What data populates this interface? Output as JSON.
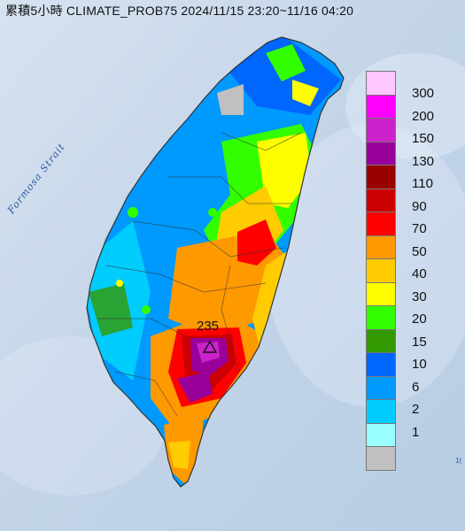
{
  "title": "累積5小時 CLIMATE_PROB75 2024/11/15 23:20~11/16 04:20",
  "map_labels": {
    "strait": "Formosa Strait",
    "peak_value": "235",
    "edge_text": "1("
  },
  "legend": {
    "bands": [
      {
        "label": "300",
        "color": "#fec8fe"
      },
      {
        "label": "200",
        "color": "#fe00fe"
      },
      {
        "label": "150",
        "color": "#cc22cc"
      },
      {
        "label": "130",
        "color": "#990099"
      },
      {
        "label": "110",
        "color": "#990000"
      },
      {
        "label": "90",
        "color": "#cc0000"
      },
      {
        "label": "70",
        "color": "#fe0000"
      },
      {
        "label": "50",
        "color": "#fe9900"
      },
      {
        "label": "40",
        "color": "#fecc00"
      },
      {
        "label": "30",
        "color": "#fefe00"
      },
      {
        "label": "20",
        "color": "#33fe00"
      },
      {
        "label": "15",
        "color": "#339900"
      },
      {
        "label": "10",
        "color": "#0066fe"
      },
      {
        "label": "6",
        "color": "#0099fe"
      },
      {
        "label": "2",
        "color": "#00ccfe"
      },
      {
        "label": "1",
        "color": "#99fefe"
      },
      {
        "label": "",
        "color": "#c0c0c0"
      }
    ]
  }
}
